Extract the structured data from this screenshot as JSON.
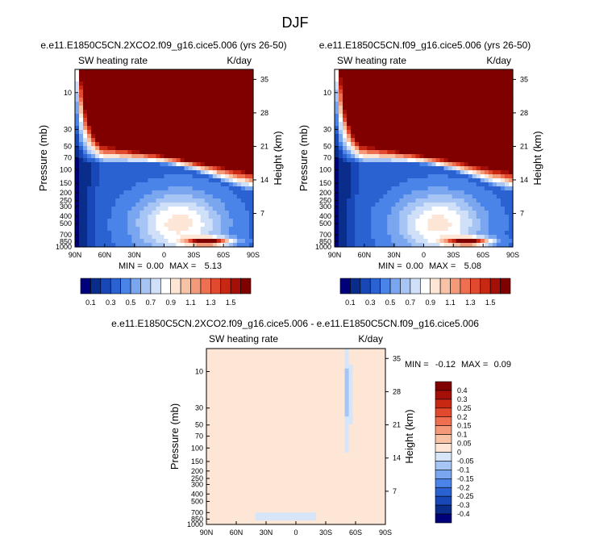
{
  "main_title": "DJF",
  "colors": {
    "sequential_scale": [
      "#00007a",
      "#0a2d8c",
      "#1848b8",
      "#2a62d2",
      "#4a84e8",
      "#7aa6f0",
      "#a6c4f4",
      "#d0e0f8",
      "#ffffff",
      "#fde6d6",
      "#f8c2a6",
      "#f49a78",
      "#ee7050",
      "#e24a30",
      "#c82812",
      "#a40f08",
      "#800000"
    ],
    "diverging_scale": [
      "#00007a",
      "#0a2d8c",
      "#1848b8",
      "#2a62d2",
      "#4a84e8",
      "#7aa6f0",
      "#a6c4f4",
      "#d6e6f8",
      "#fde6d6",
      "#f8c2a6",
      "#f49a78",
      "#ee7050",
      "#e24a30",
      "#c82812",
      "#a40f08",
      "#800000"
    ]
  },
  "chart_data": [
    {
      "type": "heatmap",
      "title": "e.e11.E1850C5CN.2XCO2.f09_g16.cice5.006 (yrs 26-50)",
      "variable_label": "SW heating rate",
      "units_label": "K/day",
      "ylabel": "Pressure (mb)",
      "ylabel_right": "Height (km)",
      "x_ticks": [
        "90N",
        "60N",
        "30N",
        "0",
        "30S",
        "60S",
        "90S"
      ],
      "y_ticks": [
        "10",
        "30",
        "50",
        "70",
        "100",
        "150",
        "200",
        "250",
        "300",
        "400",
        "500",
        "700",
        "850",
        "1000"
      ],
      "y_ticks_right": [
        "35",
        "28",
        "21",
        "14",
        "7"
      ],
      "y_scale": "log",
      "ylim": [
        1000,
        5
      ],
      "min_label": "MIN =",
      "min_value": "0.00",
      "max_label": "MAX =",
      "max_value": "5.13",
      "colorbar_labels": [
        "0.1",
        "0.3",
        "0.5",
        "0.7",
        "0.9",
        "1.1",
        "1.3",
        "1.5"
      ]
    },
    {
      "type": "heatmap",
      "title": "e.e11.E1850C5CN.f09_g16.cice5.006 (yrs 26-50)",
      "variable_label": "SW heating rate",
      "units_label": "K/day",
      "ylabel": "Pressure (mb)",
      "ylabel_right": "Height (km)",
      "x_ticks": [
        "90N",
        "60N",
        "30N",
        "0",
        "30S",
        "60S",
        "90S"
      ],
      "y_ticks": [
        "10",
        "30",
        "50",
        "70",
        "100",
        "150",
        "200",
        "250",
        "300",
        "400",
        "500",
        "700",
        "850",
        "1000"
      ],
      "y_ticks_right": [
        "35",
        "28",
        "21",
        "14",
        "7"
      ],
      "y_scale": "log",
      "ylim": [
        1000,
        5
      ],
      "min_label": "MIN =",
      "min_value": "0.00",
      "max_label": "MAX =",
      "max_value": "5.08",
      "colorbar_labels": [
        "0.1",
        "0.3",
        "0.5",
        "0.7",
        "0.9",
        "1.1",
        "1.3",
        "1.5"
      ]
    },
    {
      "type": "heatmap",
      "title": "e.e11.E1850C5CN.2XCO2.f09_g16.cice5.006 - e.e11.E1850C5CN.f09_g16.cice5.006",
      "variable_label": "SW heating rate",
      "units_label": "K/day",
      "ylabel": "Pressure (mb)",
      "ylabel_right": "Height (km)",
      "x_ticks": [
        "90N",
        "60N",
        "30N",
        "0",
        "30S",
        "60S",
        "90S"
      ],
      "y_ticks": [
        "10",
        "30",
        "50",
        "70",
        "100",
        "150",
        "200",
        "250",
        "300",
        "400",
        "500",
        "700",
        "850",
        "1000"
      ],
      "y_ticks_right": [
        "35",
        "28",
        "21",
        "14",
        "7"
      ],
      "y_scale": "log",
      "ylim": [
        1000,
        5
      ],
      "min_label": "MIN =",
      "min_value": "-0.12",
      "max_label": "MAX =",
      "max_value": "0.09",
      "colorbar_labels": [
        "0.4",
        "0.3",
        "0.25",
        "0.2",
        "0.15",
        "0.1",
        "0.05",
        "0",
        "-0.05",
        "-0.1",
        "-0.15",
        "-0.2",
        "-0.25",
        "-0.3",
        "-0.4"
      ]
    }
  ]
}
